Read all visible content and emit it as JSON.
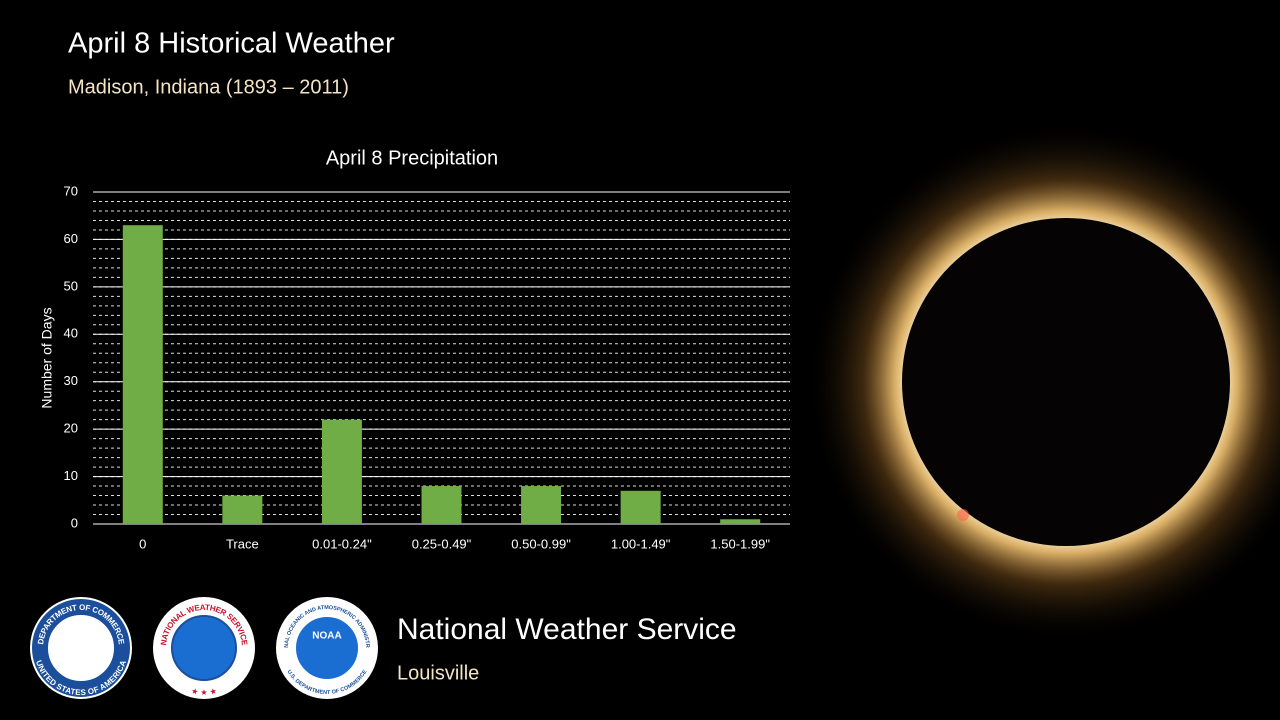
{
  "header": {
    "title": "April 8 Historical Weather",
    "subtitle": "Madison, Indiana (1893 – 2011)"
  },
  "chart_data": {
    "type": "bar",
    "title": "April 8 Precipitation",
    "y_label": "Number of Days",
    "categories": [
      "0",
      "Trace",
      "0.01-0.24\"",
      "0.25-0.49\"",
      "0.50-0.99\"",
      "1.00-1.49\"",
      "1.50-1.99\""
    ],
    "values": [
      63,
      6,
      22,
      8,
      8,
      7,
      1
    ],
    "color": "#70ad47",
    "ylim": [
      0,
      70
    ],
    "yticks": [
      0,
      10,
      20,
      30,
      40,
      50,
      60,
      70
    ],
    "grid": true,
    "minor_grid_step": 2
  },
  "footer": {
    "agency": "National Weather Service",
    "office": "Louisville",
    "logos": [
      {
        "top": "DEPARTMENT OF COMMERCE",
        "bottom": "UNITED STATES OF AMERICA"
      },
      {
        "top": "NATIONAL WEATHER SERVICE",
        "bottom": "★ ★ ★"
      },
      {
        "top": "NATIONAL OCEANIC AND ATMOSPHERIC ADMINISTRATION",
        "bottom": "U.S. DEPARTMENT OF COMMERCE",
        "center": "NOAA"
      }
    ]
  }
}
